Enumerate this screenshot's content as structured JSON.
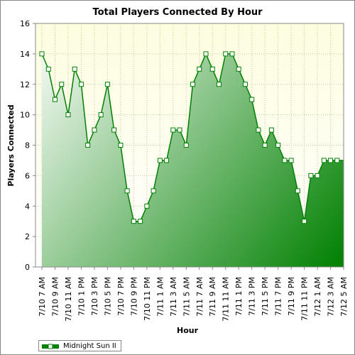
{
  "chart_data": {
    "type": "area",
    "title": "Total Players Connected By Hour",
    "xlabel": "Hour",
    "ylabel": "Players Connected",
    "ylim": [
      0,
      16
    ],
    "yticks": [
      0,
      2,
      4,
      6,
      8,
      10,
      12,
      14,
      16
    ],
    "grid": true,
    "legend_position": "bottom-left",
    "colors": {
      "plot_bg_top": "#fdfde0",
      "plot_bg_bottom": "#ffffff",
      "line": "#008000",
      "fill_light": "#ffffff",
      "fill_dark": "#008000",
      "grid": "#c8c8a0"
    },
    "x_tick_labels": [
      "7/10 7 AM",
      "7/10 9 AM",
      "7/10 11 AM",
      "7/10 1 PM",
      "7/10 3 PM",
      "7/10 5 PM",
      "7/10 7 PM",
      "7/10 9 PM",
      "7/10 11 PM",
      "7/11 1 AM",
      "7/11 3 AM",
      "7/11 5 AM",
      "7/11 7 AM",
      "7/11 9 AM",
      "7/11 11 AM",
      "7/11 1 PM",
      "7/11 3 PM",
      "7/11 5 PM",
      "7/11 7 PM",
      "7/11 9 PM",
      "7/11 11 PM",
      "7/12 1 AM",
      "7/12 3 AM",
      "7/12 5 AM"
    ],
    "series": [
      {
        "name": "Midnight Sun II",
        "values": [
          14,
          13,
          11,
          12,
          10,
          13,
          12,
          8,
          9,
          10,
          12,
          9,
          8,
          5,
          3,
          3,
          4,
          5,
          7,
          7,
          9,
          9,
          8,
          12,
          13,
          14,
          13,
          12,
          14,
          14,
          13,
          12,
          11,
          9,
          8,
          9,
          8,
          7,
          7,
          5,
          3,
          6,
          6,
          7,
          7,
          7
        ]
      }
    ]
  }
}
